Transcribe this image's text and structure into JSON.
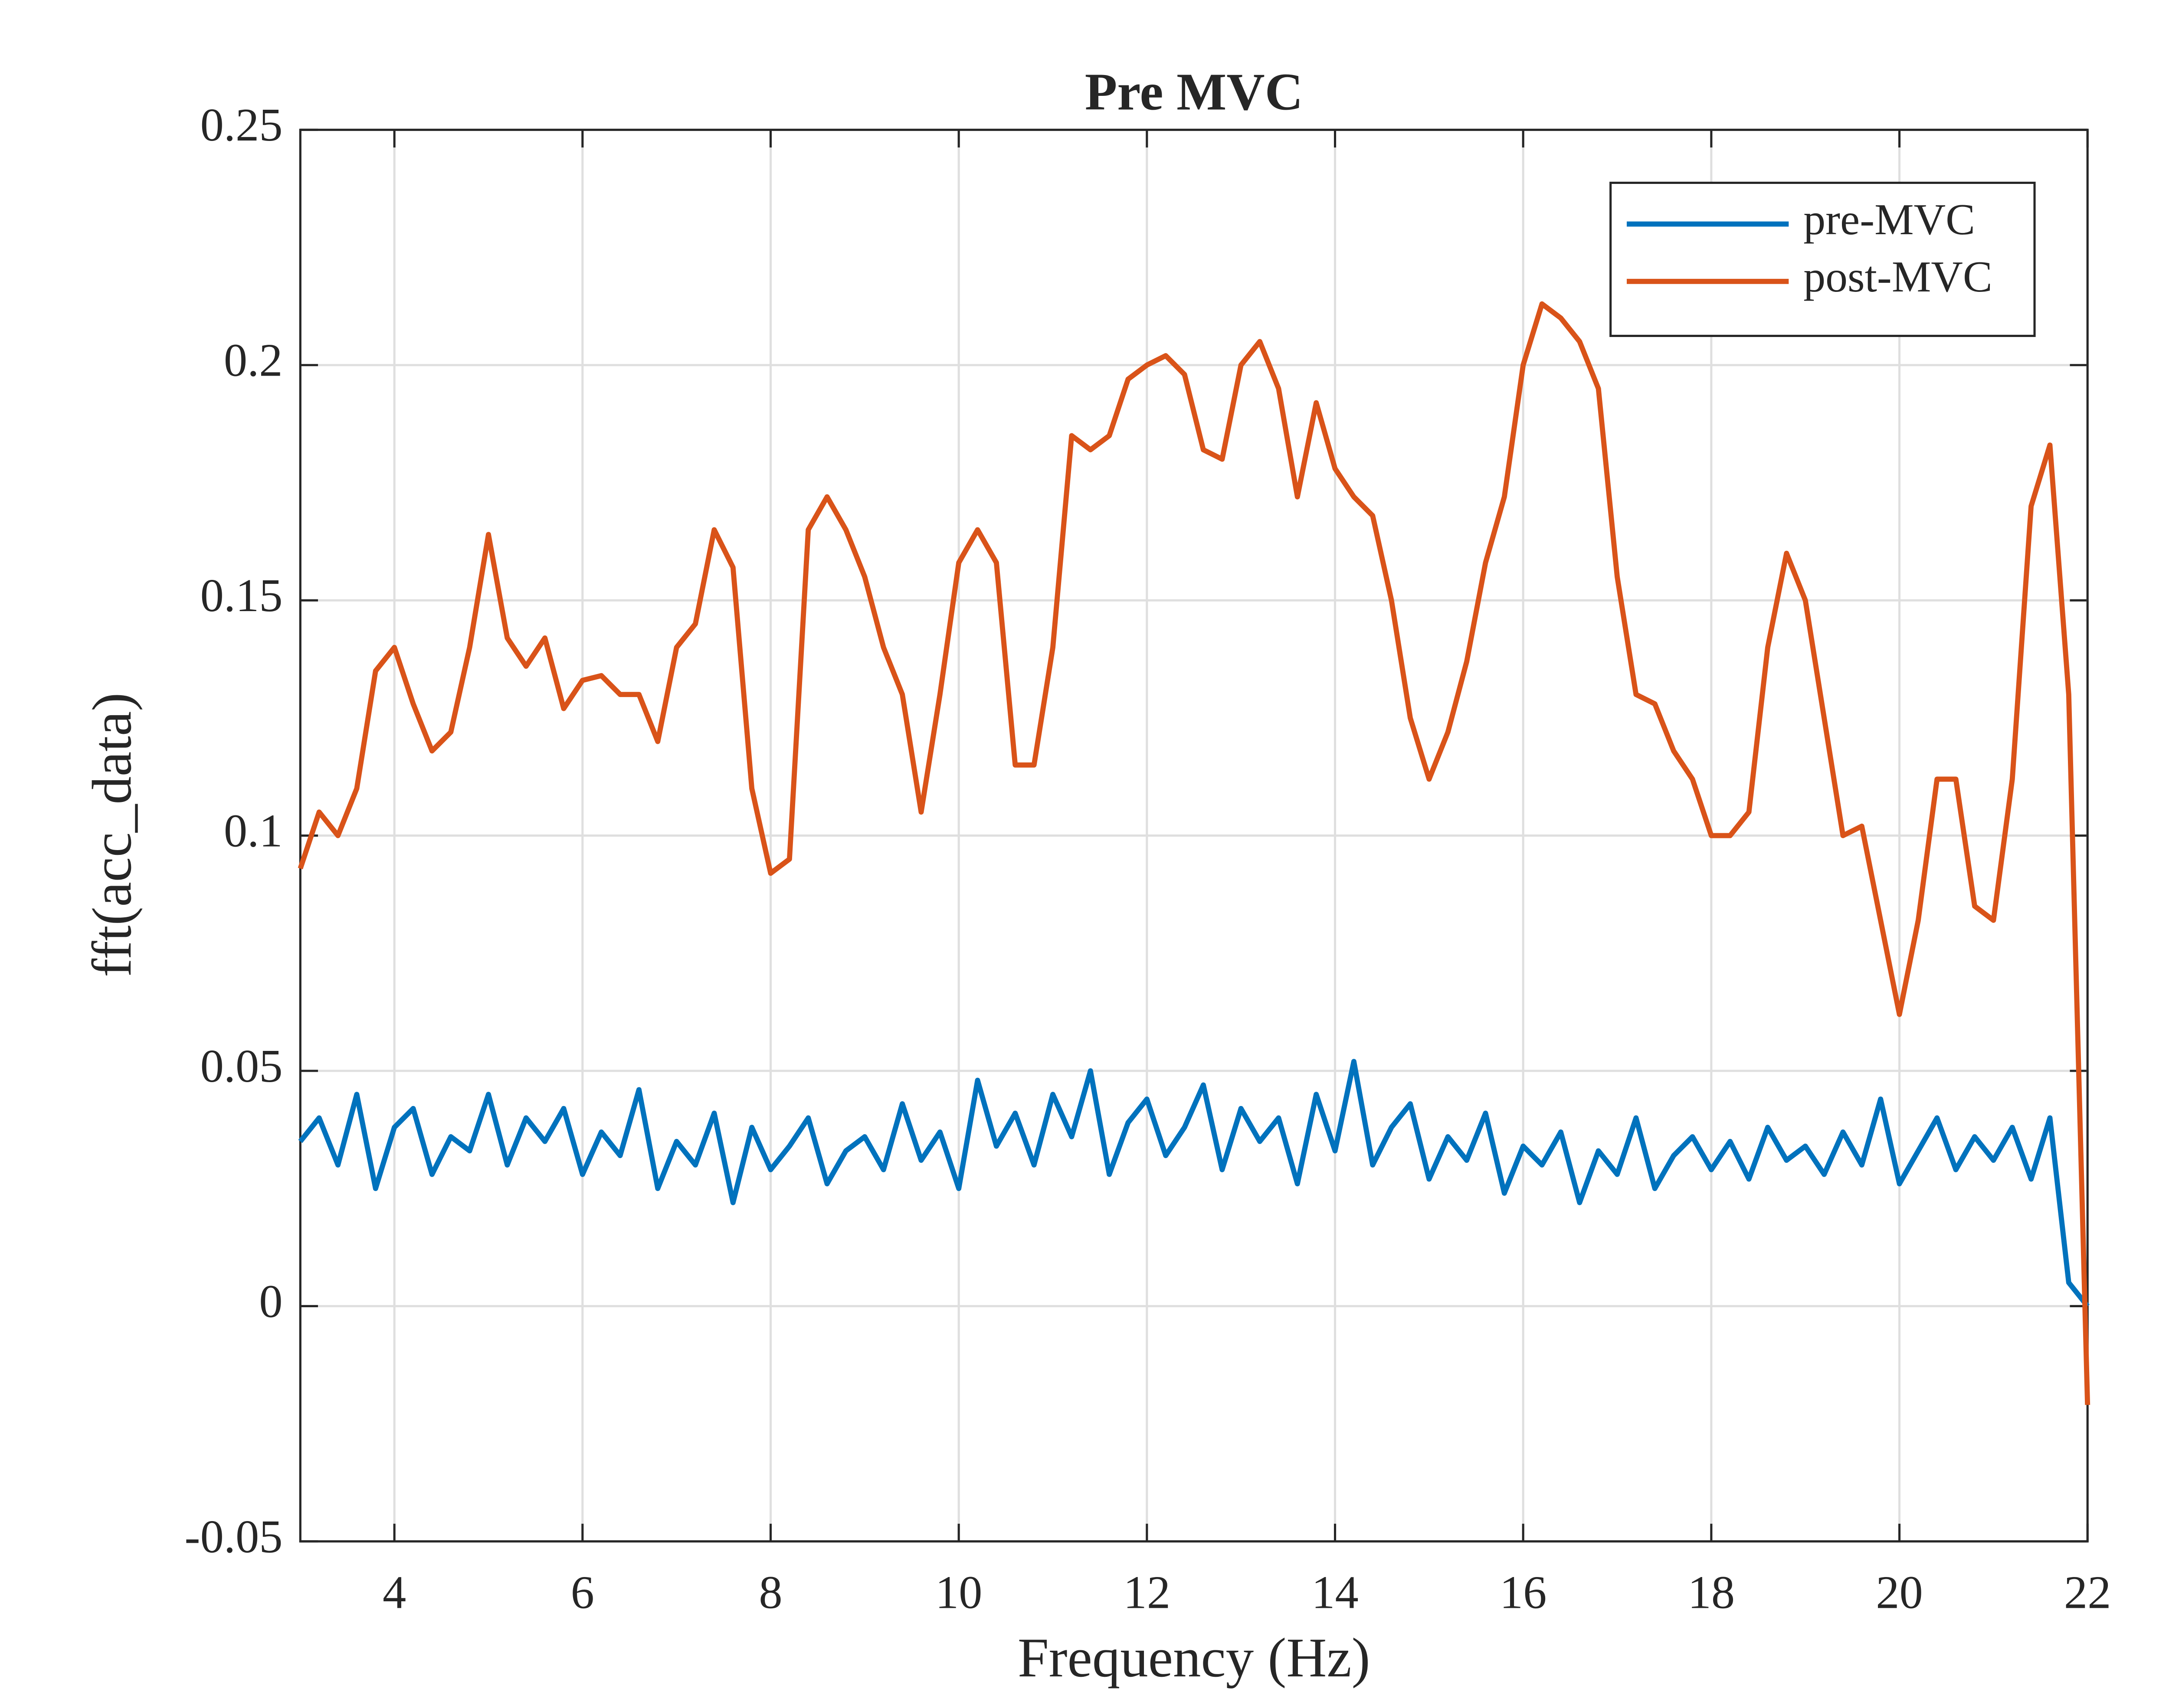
{
  "chart_data": {
    "type": "line",
    "title": "Pre MVC",
    "xlabel": "Frequency (Hz)",
    "ylabel": "fft(acc_data)",
    "x": [
      3,
      3.2,
      3.4,
      3.6,
      3.8,
      4,
      4.2,
      4.4,
      4.6,
      4.8,
      5,
      5.2,
      5.4,
      5.6,
      5.8,
      6,
      6.2,
      6.4,
      6.6,
      6.8,
      7,
      7.2,
      7.4,
      7.6,
      7.8,
      8,
      8.2,
      8.4,
      8.6,
      8.8,
      9,
      9.2,
      9.4,
      9.6,
      9.8,
      10,
      10.2,
      10.4,
      10.6,
      10.8,
      11,
      11.2,
      11.4,
      11.6,
      11.8,
      12,
      12.2,
      12.4,
      12.6,
      12.8,
      13,
      13.2,
      13.4,
      13.6,
      13.8,
      14,
      14.2,
      14.4,
      14.6,
      14.8,
      15,
      15.2,
      15.4,
      15.6,
      15.8,
      16,
      16.2,
      16.4,
      16.6,
      16.8,
      17,
      17.2,
      17.4,
      17.6,
      17.8,
      18,
      18.2,
      18.4,
      18.6,
      18.8,
      19,
      19.2,
      19.4,
      19.6,
      19.8,
      20,
      20.2,
      20.4,
      20.6,
      20.8,
      21,
      21.2,
      21.4,
      21.6,
      21.8,
      22
    ],
    "series": [
      {
        "name": "pre-MVC",
        "color": "#0072bd",
        "values": [
          0.035,
          0.04,
          0.03,
          0.045,
          0.025,
          0.038,
          0.042,
          0.028,
          0.036,
          0.033,
          0.045,
          0.03,
          0.04,
          0.035,
          0.042,
          0.028,
          0.037,
          0.032,
          0.046,
          0.025,
          0.035,
          0.03,
          0.041,
          0.022,
          0.038,
          0.029,
          0.034,
          0.04,
          0.026,
          0.033,
          0.036,
          0.029,
          0.043,
          0.031,
          0.037,
          0.025,
          0.048,
          0.034,
          0.041,
          0.03,
          0.045,
          0.036,
          0.05,
          0.028,
          0.039,
          0.044,
          0.032,
          0.038,
          0.047,
          0.029,
          0.042,
          0.035,
          0.04,
          0.026,
          0.045,
          0.033,
          0.052,
          0.03,
          0.038,
          0.043,
          0.027,
          0.036,
          0.031,
          0.041,
          0.024,
          0.034,
          0.03,
          0.037,
          0.022,
          0.033,
          0.028,
          0.04,
          0.025,
          0.032,
          0.036,
          0.029,
          0.035,
          0.027,
          0.038,
          0.031,
          0.034,
          0.028,
          0.037,
          0.03,
          0.044,
          0.026,
          0.033,
          0.04,
          0.029,
          0.036,
          0.031,
          0.038,
          0.027,
          0.04,
          0.005,
          0
        ]
      },
      {
        "name": "post-MVC",
        "color": "#d95319",
        "values": [
          0.093,
          0.105,
          0.1,
          0.11,
          0.135,
          0.14,
          0.128,
          0.118,
          0.122,
          0.14,
          0.164,
          0.142,
          0.136,
          0.142,
          0.127,
          0.133,
          0.134,
          0.13,
          0.13,
          0.12,
          0.14,
          0.145,
          0.165,
          0.157,
          0.11,
          0.092,
          0.095,
          0.165,
          0.172,
          0.165,
          0.155,
          0.14,
          0.13,
          0.105,
          0.13,
          0.158,
          0.165,
          0.158,
          0.115,
          0.115,
          0.14,
          0.185,
          0.182,
          0.185,
          0.197,
          0.2,
          0.202,
          0.198,
          0.182,
          0.18,
          0.2,
          0.205,
          0.195,
          0.172,
          0.192,
          0.178,
          0.172,
          0.168,
          0.15,
          0.125,
          0.112,
          0.122,
          0.137,
          0.158,
          0.172,
          0.2,
          0.213,
          0.21,
          0.205,
          0.195,
          0.155,
          0.13,
          0.128,
          0.118,
          0.112,
          0.1,
          0.1,
          0.105,
          0.14,
          0.16,
          0.15,
          0.125,
          0.1,
          0.102,
          0.082,
          0.062,
          0.082,
          0.112,
          0.112,
          0.085,
          0.082,
          0.112,
          0.17,
          0.183,
          0.13,
          -0.021
        ]
      }
    ],
    "xlim": [
      3,
      22
    ],
    "xticks": [
      4,
      6,
      8,
      10,
      12,
      14,
      16,
      18,
      20,
      22
    ],
    "ylim": [
      -0.05,
      0.25
    ],
    "yticks": [
      -0.05,
      0,
      0.05,
      0.1,
      0.15,
      0.2,
      0.25
    ],
    "grid": true,
    "legend": "northeast"
  }
}
